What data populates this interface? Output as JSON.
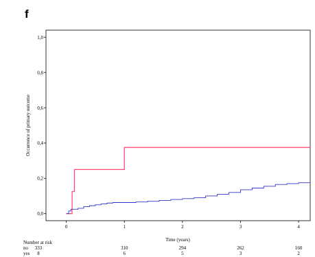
{
  "panel_label": "f",
  "chart_data": {
    "type": "line",
    "step": true,
    "ylabel": "Occurrence of primary outcome",
    "xlabel": "Time (years)",
    "xlim": [
      -0.35,
      4.2
    ],
    "ylim": [
      -0.04,
      1.04
    ],
    "x_ticks": [
      0,
      1,
      2,
      3,
      4
    ],
    "y_ticks": [
      0.0,
      0.2,
      0.4,
      0.6,
      0.8,
      1.0
    ],
    "y_tick_labels": [
      "0,0",
      "0,2",
      "0,4",
      "0,6",
      "0,8",
      "1,0"
    ],
    "x_tick_labels": [
      "0",
      "1",
      "2",
      "3",
      "4"
    ],
    "grid": false,
    "series": [
      {
        "color": "#ff4d79",
        "points": [
          [
            0.0,
            0.0
          ],
          [
            0.1,
            0.0
          ],
          [
            0.1,
            0.125
          ],
          [
            0.14,
            0.125
          ],
          [
            0.14,
            0.25
          ],
          [
            1.0,
            0.25
          ],
          [
            1.0,
            0.375
          ],
          [
            4.2,
            0.375
          ]
        ]
      },
      {
        "color": "#3333cc",
        "points": [
          [
            0.0,
            0.0
          ],
          [
            0.04,
            0.015
          ],
          [
            0.08,
            0.025
          ],
          [
            0.2,
            0.03
          ],
          [
            0.3,
            0.04
          ],
          [
            0.4,
            0.045
          ],
          [
            0.5,
            0.05
          ],
          [
            0.6,
            0.055
          ],
          [
            0.7,
            0.06
          ],
          [
            0.8,
            0.063
          ],
          [
            1.0,
            0.063
          ],
          [
            1.2,
            0.066
          ],
          [
            1.4,
            0.07
          ],
          [
            1.6,
            0.075
          ],
          [
            1.8,
            0.08
          ],
          [
            2.0,
            0.085
          ],
          [
            2.2,
            0.09
          ],
          [
            2.4,
            0.1
          ],
          [
            2.6,
            0.11
          ],
          [
            2.8,
            0.12
          ],
          [
            3.0,
            0.135
          ],
          [
            3.2,
            0.145
          ],
          [
            3.4,
            0.155
          ],
          [
            3.6,
            0.165
          ],
          [
            3.8,
            0.17
          ],
          [
            4.0,
            0.175
          ],
          [
            4.2,
            0.18
          ]
        ]
      }
    ],
    "risk_table": {
      "title": "Number at risk",
      "rows": [
        {
          "label": "no",
          "values": [
            "333",
            "310",
            "294",
            "262",
            "160"
          ]
        },
        {
          "label": "yes",
          "values": [
            "8",
            "6",
            "5",
            "3",
            "2"
          ]
        }
      ]
    }
  }
}
